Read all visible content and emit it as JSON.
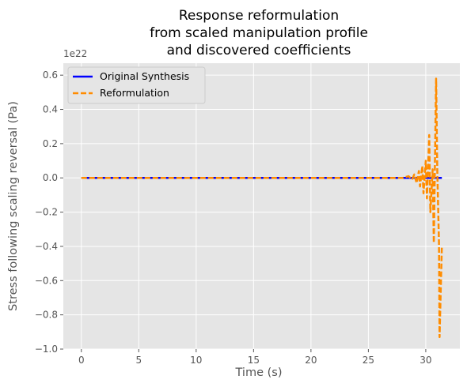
{
  "chart_data": {
    "type": "line",
    "title": [
      "Response reformulation",
      "from scaled manipulation profile",
      "and discovered coefficients"
    ],
    "xlabel": "Time (s)",
    "ylabel": "Stress following scaling reversal (Pa)",
    "y_offset_label": "1e22",
    "xlim": [
      -1.57,
      32.97
    ],
    "ylim": [
      -1.0,
      0.67
    ],
    "x_ticks": [
      0,
      5,
      10,
      15,
      20,
      25,
      30
    ],
    "x_tick_labels": [
      "0",
      "5",
      "10",
      "15",
      "20",
      "25",
      "30"
    ],
    "y_ticks": [
      -1.0,
      -0.8,
      -0.6,
      -0.4,
      -0.2,
      0.0,
      0.2,
      0.4,
      0.6
    ],
    "y_tick_labels": [
      "−1.0",
      "−0.8",
      "−0.6",
      "−0.4",
      "−0.2",
      "0.0",
      "0.2",
      "0.4",
      "0.6"
    ],
    "grid": true,
    "legend_position": "top-left",
    "background": "#e5e5e5",
    "series": [
      {
        "name": "Original Synthesis",
        "color": "#0000ff",
        "style": "solid",
        "x": [
          0,
          31.4
        ],
        "y": [
          0,
          0
        ]
      },
      {
        "name": "Reformulation",
        "color": "#ff8c00",
        "style": "dashed",
        "x": [
          0,
          28.0,
          28.5,
          28.8,
          29.0,
          29.2,
          29.4,
          29.5,
          29.7,
          29.8,
          30.0,
          30.1,
          30.3,
          30.4,
          30.6,
          30.7,
          30.9,
          31.0,
          31.15,
          31.2,
          31.4
        ],
        "y": [
          0,
          0,
          0.01,
          -0.01,
          0.02,
          -0.03,
          0.04,
          -0.05,
          0.07,
          -0.09,
          0.1,
          -0.12,
          0.25,
          -0.2,
          0.05,
          -0.38,
          0.58,
          0.05,
          -0.38,
          -0.93,
          -0.4
        ]
      }
    ]
  }
}
